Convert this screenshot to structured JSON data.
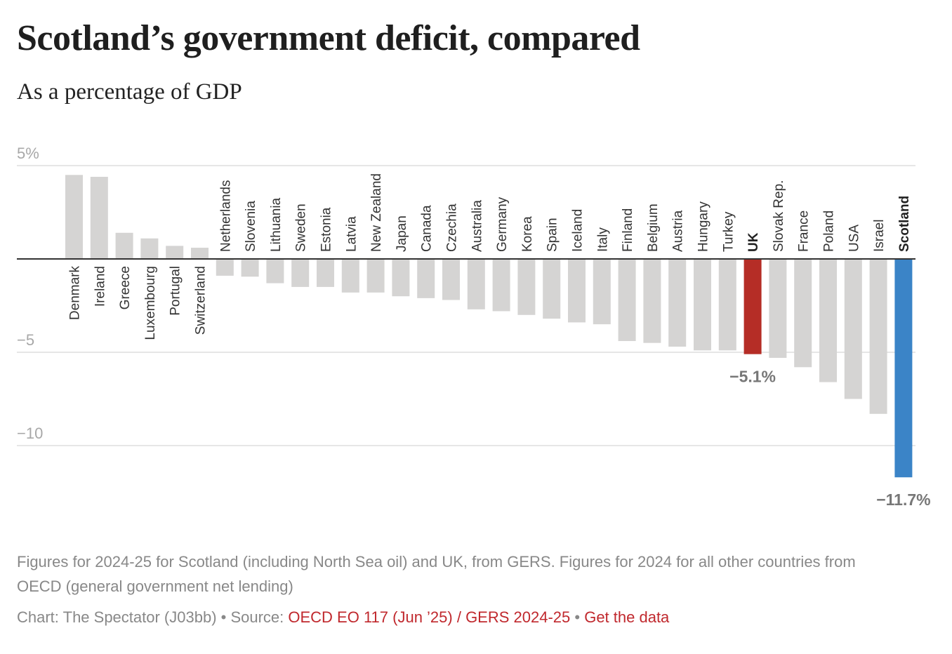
{
  "header": {
    "title": "Scotland’s government deficit, compared",
    "subtitle": "As a percentage of GDP"
  },
  "chart_data": {
    "type": "bar",
    "title": "Scotland’s government deficit, compared",
    "subtitle": "As a percentage of GDP",
    "xlabel": "",
    "ylabel": "",
    "ylim": [
      -11.7,
      5
    ],
    "grid": true,
    "yticks": [
      {
        "value": 5,
        "label": "5%"
      },
      {
        "value": -5,
        "label": "−5"
      },
      {
        "value": -10,
        "label": "−10"
      }
    ],
    "categories": [
      "Denmark",
      "Ireland",
      "Greece",
      "Luxembourg",
      "Portugal",
      "Switzerland",
      "Netherlands",
      "Slovenia",
      "Lithuania",
      "Sweden",
      "Estonia",
      "Latvia",
      "New Zealand",
      "Japan",
      "Canada",
      "Czechia",
      "Australia",
      "Germany",
      "Korea",
      "Spain",
      "Iceland",
      "Italy",
      "Finland",
      "Belgium",
      "Austria",
      "Hungary",
      "Turkey",
      "UK",
      "Slovak Rep.",
      "France",
      "Poland",
      "USA",
      "Israel",
      "Scotland"
    ],
    "values": [
      4.5,
      4.4,
      1.4,
      1.1,
      0.7,
      0.6,
      -0.9,
      -0.95,
      -1.3,
      -1.5,
      -1.5,
      -1.8,
      -1.8,
      -2.0,
      -2.1,
      -2.2,
      -2.7,
      -2.8,
      -3.0,
      -3.2,
      -3.4,
      -3.5,
      -4.4,
      -4.5,
      -4.7,
      -4.9,
      -4.9,
      -5.1,
      -5.3,
      -5.8,
      -6.6,
      -7.5,
      -8.3,
      -11.7
    ],
    "highlights": {
      "UK": {
        "color": "#b52d26",
        "label": "−5.1%"
      },
      "Scotland": {
        "color": "#3b84c7",
        "label": "−11.7%"
      }
    },
    "default_color": "#d5d4d3",
    "bold_categories": [
      "UK",
      "Scotland"
    ]
  },
  "footer": {
    "note": "Figures for 2024-25 for Scotland (including North Sea oil) and UK, from GERS. Figures for 2024 for all other countries from OECD (general government net lending)",
    "credit_prefix": "Chart: The Spectator (J03bb) • Source: ",
    "source_link": "OECD EO 117 (Jun ’25) / GERS 2024-25",
    "separator": " • ",
    "data_link": "Get the data"
  }
}
